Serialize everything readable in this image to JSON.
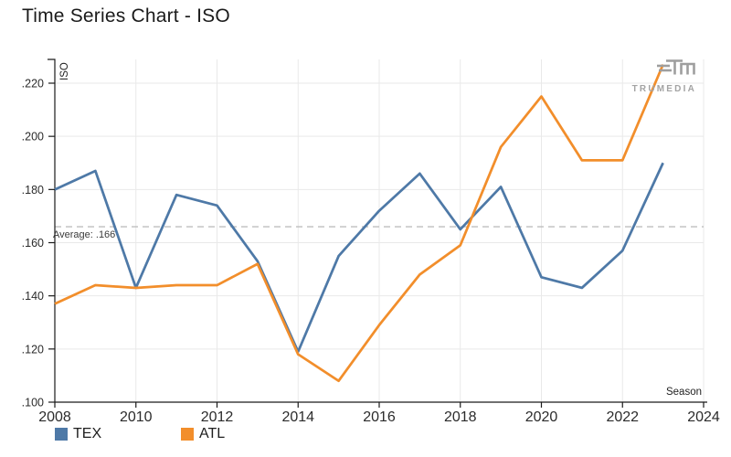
{
  "page": {
    "title": "Time Series Chart - ISO"
  },
  "chart_data": {
    "type": "line",
    "title": "Time Series Chart - ISO",
    "xlabel": "Season",
    "ylabel": "ISO",
    "xlim": [
      2008,
      2024
    ],
    "ylim": [
      0.1,
      0.22
    ],
    "xticks": [
      2008,
      2010,
      2012,
      2014,
      2016,
      2018,
      2020,
      2022,
      2024
    ],
    "yticks": [
      0.1,
      0.12,
      0.14,
      0.16,
      0.18,
      0.2,
      0.22
    ],
    "grid": true,
    "legend_position": "bottom-left",
    "x": [
      2008,
      2009,
      2010,
      2011,
      2012,
      2013,
      2014,
      2015,
      2016,
      2017,
      2018,
      2019,
      2020,
      2021,
      2022,
      2023
    ],
    "series": [
      {
        "name": "TEX",
        "color": "#4e79a7",
        "values": [
          0.18,
          0.187,
          0.143,
          0.178,
          0.174,
          0.153,
          0.119,
          0.155,
          0.172,
          0.186,
          0.165,
          0.181,
          0.147,
          0.143,
          0.157,
          0.19
        ]
      },
      {
        "name": "ATL",
        "color": "#f28e2b",
        "values": [
          0.137,
          0.144,
          0.143,
          0.144,
          0.144,
          0.152,
          0.118,
          0.108,
          0.129,
          0.148,
          0.159,
          0.196,
          0.215,
          0.191,
          0.191,
          0.227
        ]
      }
    ],
    "average": {
      "value": 0.166,
      "label": "Average: .166"
    }
  },
  "branding": {
    "logo_text": "TRUMEDIA"
  },
  "colors": {
    "grid": "#e9e9e9",
    "axis": "#1a1a1a",
    "average_line": "#bdbdbd",
    "logo": "#9e9e9e"
  }
}
